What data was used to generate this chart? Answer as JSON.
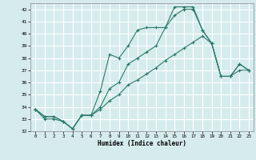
{
  "title": "",
  "xlabel": "Humidex (Indice chaleur)",
  "ylabel": "",
  "bg_color": "#d6ecec",
  "grid_color": "#ffffff",
  "line_color": "#2a7a6a",
  "xlim": [
    -0.5,
    23.5
  ],
  "ylim": [
    32,
    42.5
  ],
  "yticks": [
    32,
    33,
    34,
    35,
    36,
    37,
    38,
    39,
    40,
    41,
    42
  ],
  "xticks": [
    0,
    1,
    2,
    3,
    4,
    5,
    6,
    7,
    8,
    9,
    10,
    11,
    12,
    13,
    14,
    15,
    16,
    17,
    18,
    19,
    20,
    21,
    22,
    23
  ],
  "series": [
    {
      "x": [
        0,
        1,
        2,
        3,
        4,
        5,
        6,
        7,
        8,
        9,
        10,
        11,
        12,
        13,
        14,
        15,
        16,
        17,
        18,
        19,
        20,
        21,
        22,
        23
      ],
      "y": [
        33.8,
        33.2,
        33.2,
        32.8,
        32.2,
        33.3,
        33.3,
        35.3,
        38.3,
        38.0,
        39.0,
        40.3,
        40.5,
        40.5,
        40.5,
        42.2,
        42.2,
        42.2,
        40.3,
        39.2,
        36.5,
        36.5,
        37.5,
        37.0
      ]
    },
    {
      "x": [
        0,
        1,
        2,
        3,
        4,
        5,
        6,
        7,
        8,
        9,
        10,
        11,
        12,
        13,
        14,
        15,
        16,
        17,
        18,
        19,
        20,
        21,
        22,
        23
      ],
      "y": [
        33.8,
        33.2,
        33.2,
        32.8,
        32.2,
        33.3,
        33.3,
        34.0,
        35.5,
        36.0,
        37.5,
        38.0,
        38.5,
        39.0,
        40.5,
        41.5,
        42.0,
        42.0,
        40.3,
        39.2,
        36.5,
        36.5,
        37.5,
        37.0
      ]
    },
    {
      "x": [
        0,
        1,
        2,
        3,
        4,
        5,
        6,
        7,
        8,
        9,
        10,
        11,
        12,
        13,
        14,
        15,
        16,
        17,
        18,
        19,
        20,
        21,
        22,
        23
      ],
      "y": [
        33.8,
        33.0,
        33.0,
        32.8,
        32.2,
        33.3,
        33.3,
        33.8,
        34.5,
        35.0,
        35.8,
        36.2,
        36.7,
        37.2,
        37.8,
        38.3,
        38.8,
        39.3,
        39.8,
        39.2,
        36.5,
        36.5,
        37.0,
        37.0
      ]
    }
  ]
}
